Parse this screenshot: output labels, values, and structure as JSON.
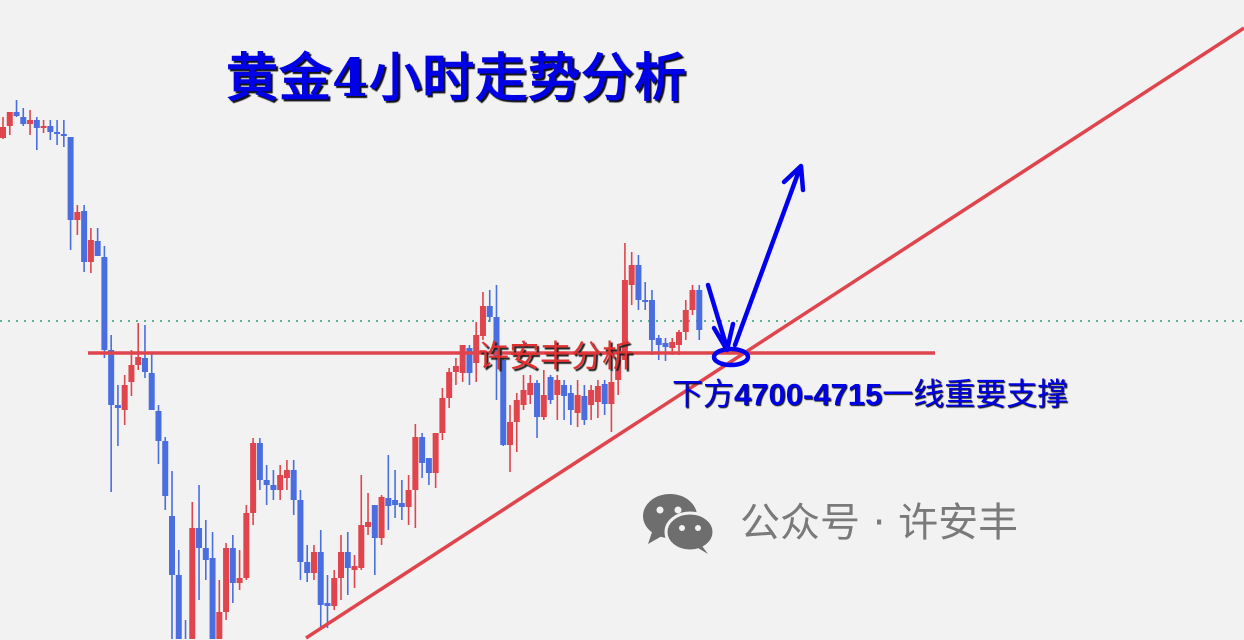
{
  "chart_data": {
    "type": "candlestick",
    "title": "黄金4小时走势分析",
    "xlabel": "",
    "ylabel": "",
    "grid": false,
    "colors": {
      "up": "#e0444c",
      "down": "#4a6ee0",
      "lines": "#e0444c",
      "current_price": "#2e9a7a",
      "arrows": "#0000ee",
      "background": "#f2f2f2"
    },
    "ylim": [
      4420,
      5060
    ],
    "candles_ohlc": [
      [
        4922,
        4943,
        4921,
        4933
      ],
      [
        4934,
        4948,
        4925,
        4948
      ],
      [
        4948,
        4960,
        4943,
        4944
      ],
      [
        4943,
        4952,
        4934,
        4936
      ],
      [
        4936,
        4950,
        4925,
        4940
      ],
      [
        4940,
        4943,
        4910,
        4932
      ],
      [
        4932,
        4940,
        4927,
        4934
      ],
      [
        4934,
        4940,
        4920,
        4928
      ],
      [
        4928,
        4940,
        4915,
        4926
      ],
      [
        4926,
        4940,
        4913,
        4924
      ],
      [
        4923,
        4923,
        4810,
        4840
      ],
      [
        4840,
        4855,
        4825,
        4848
      ],
      [
        4849,
        4855,
        4788,
        4798
      ],
      [
        4798,
        4832,
        4787,
        4820
      ],
      [
        4819,
        4832,
        4804,
        4804
      ],
      [
        4803,
        4814,
        4702,
        4710
      ],
      [
        4710,
        4725,
        4568,
        4655
      ],
      [
        4655,
        4675,
        4614,
        4652
      ],
      [
        4650,
        4685,
        4635,
        4675
      ],
      [
        4678,
        4710,
        4664,
        4695
      ],
      [
        4695,
        4737,
        4690,
        4703
      ],
      [
        4702,
        4735,
        4682,
        4688
      ],
      [
        4687,
        4707,
        4650,
        4650
      ],
      [
        4649,
        4655,
        4596,
        4619
      ],
      [
        4619,
        4623,
        4550,
        4564
      ],
      [
        4544,
        4589,
        4420,
        4485
      ],
      [
        4485,
        4510,
        4400,
        4420
      ],
      [
        4420,
        4440,
        4380,
        4400
      ],
      [
        4400,
        4558,
        4380,
        4532
      ],
      [
        4532,
        4575,
        4460,
        4512
      ],
      [
        4512,
        4540,
        4480,
        4500
      ],
      [
        4502,
        4528,
        4400,
        4415
      ],
      [
        4415,
        4480,
        4400,
        4448
      ],
      [
        4448,
        4517,
        4440,
        4512
      ],
      [
        4512,
        4525,
        4457,
        4477
      ],
      [
        4477,
        4510,
        4470,
        4482
      ],
      [
        4482,
        4555,
        4480,
        4547
      ],
      [
        4547,
        4622,
        4535,
        4617
      ],
      [
        4617,
        4622,
        4570,
        4580
      ],
      [
        4580,
        4595,
        4555,
        4575
      ],
      [
        4575,
        4590,
        4560,
        4570
      ],
      [
        4570,
        4595,
        4560,
        4585
      ],
      [
        4582,
        4600,
        4570,
        4590
      ],
      [
        4590,
        4600,
        4545,
        4560
      ],
      [
        4560,
        4570,
        4480,
        4498
      ],
      [
        4498,
        4515,
        4478,
        4487
      ],
      [
        4487,
        4515,
        4480,
        4508
      ],
      [
        4508,
        4530,
        4432,
        4455
      ],
      [
        4457,
        4485,
        4432,
        4454
      ],
      [
        4454,
        4490,
        4450,
        4482
      ],
      [
        4482,
        4525,
        4460,
        4508
      ],
      [
        4508,
        4528,
        4465,
        4492
      ],
      [
        4490,
        4505,
        4472,
        4494
      ],
      [
        4492,
        4585,
        4490,
        4535
      ],
      [
        4533,
        4567,
        4525,
        4538
      ],
      [
        4555,
        4555,
        4485,
        4522
      ],
      [
        4522,
        4565,
        4515,
        4563
      ],
      [
        4562,
        4605,
        4530,
        4554
      ],
      [
        4560,
        4590,
        4542,
        4555
      ],
      [
        4557,
        4580,
        4540,
        4553
      ],
      [
        4553,
        4585,
        4535,
        4570
      ],
      [
        4570,
        4636,
        4532,
        4623
      ],
      [
        4623,
        4627,
        4582,
        4597
      ],
      [
        4602,
        4602,
        4575,
        4587
      ],
      [
        4587,
        4627,
        4572,
        4627
      ],
      [
        4627,
        4672,
        4620,
        4662
      ],
      [
        4662,
        4692,
        4652,
        4688
      ],
      [
        4688,
        4702,
        4675,
        4694
      ],
      [
        4687,
        4715,
        4678,
        4715
      ],
      [
        4712,
        4715,
        4675,
        4687
      ],
      [
        4697,
        4738,
        4678,
        4725
      ],
      [
        4724,
        4768,
        4720,
        4754
      ],
      [
        4754,
        4770,
        4738,
        4743
      ],
      [
        4743,
        4775,
        4660,
        4702
      ],
      [
        4700,
        4702,
        4614,
        4615
      ],
      [
        4615,
        4655,
        4588,
        4638
      ],
      [
        4638,
        4667,
        4608,
        4660
      ],
      [
        4655,
        4685,
        4650,
        4670
      ],
      [
        4665,
        4685,
        4656,
        4677
      ],
      [
        4677,
        4680,
        4622,
        4643
      ],
      [
        4643,
        4690,
        4640,
        4665
      ],
      [
        4683,
        4685,
        4656,
        4660
      ],
      [
        4665,
        4685,
        4640,
        4680
      ],
      [
        4675,
        4680,
        4640,
        4664
      ],
      [
        4667,
        4675,
        4635,
        4650
      ],
      [
        4647,
        4680,
        4633,
        4665
      ],
      [
        4664,
        4675,
        4635,
        4640
      ],
      [
        4655,
        4675,
        4640,
        4670
      ],
      [
        4658,
        4680,
        4642,
        4674
      ],
      [
        4676,
        4680,
        4645,
        4656
      ],
      [
        4656,
        4688,
        4628,
        4678
      ],
      [
        4680,
        4710,
        4665,
        4700
      ],
      [
        4700,
        4817,
        4700,
        4780
      ],
      [
        4775,
        4808,
        4755,
        4795
      ],
      [
        4795,
        4805,
        4750,
        4760
      ],
      [
        4760,
        4778,
        4750,
        4758
      ],
      [
        4760,
        4770,
        4705,
        4720
      ],
      [
        4722,
        4725,
        4700,
        4715
      ],
      [
        4717,
        4722,
        4699,
        4713
      ],
      [
        4712,
        4722,
        4705,
        4718
      ],
      [
        4715,
        4730,
        4705,
        4728
      ],
      [
        4728,
        4760,
        4720,
        4750
      ],
      [
        4750,
        4775,
        4745,
        4770
      ],
      [
        4770,
        4775,
        4720,
        4730
      ]
    ],
    "support_level": 4707,
    "current_price_line": 4739,
    "annotations": {
      "watermark": "许安丰分析",
      "support_text_prefix": "下方",
      "support_text_range": "4700-4715",
      "support_text_suffix": "一线重要支撑"
    }
  },
  "wechat_watermark": {
    "icon": "wechat-icon",
    "text": "公众号 · 许安丰"
  }
}
